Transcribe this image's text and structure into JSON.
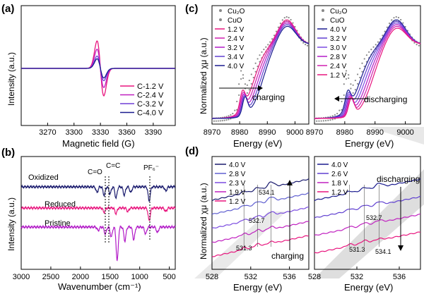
{
  "figure": {
    "panel_labels": [
      "(a)",
      "(b)",
      "(c)",
      "(d)"
    ]
  },
  "chart_data": [
    {
      "panel": "a",
      "type": "line",
      "xlabel": "Magnetic field (G)",
      "ylabel": "Intensity (a.u.)",
      "xlim": [
        3240,
        3415
      ],
      "ylim": [
        -1.0,
        1.0
      ],
      "xticks": [
        "3270",
        "3300",
        "3330",
        "3360",
        "3390"
      ],
      "legend": [
        "C-1.2 V",
        "C-2.4 V",
        "C-3.2 V",
        "C-4.0 V"
      ],
      "series": [
        {
          "name": "C-1.2 V",
          "color": "#e8157e",
          "center": 3330,
          "amplitude": 1.0,
          "width": 4
        },
        {
          "name": "C-2.4 V",
          "color": "#c020c0",
          "center": 3330,
          "amplitude": 0.7,
          "width": 4
        },
        {
          "name": "C-3.2 V",
          "color": "#6f3fd6",
          "center": 3330,
          "amplitude": 0.45,
          "width": 4
        },
        {
          "name": "C-4.0 V",
          "color": "#1a1b8f",
          "center": 3330,
          "amplitude": 0.35,
          "width": 4
        }
      ]
    },
    {
      "panel": "b",
      "type": "line",
      "xlabel": "Wavenumber (cm⁻¹)",
      "ylabel": "Intensity (a.u.)",
      "xlim": [
        3000,
        400
      ],
      "xticks": [
        "3000",
        "2500",
        "2000",
        "1500",
        "1000",
        "500"
      ],
      "annotations": [
        "C=O",
        "C=C",
        "PF₆⁻"
      ],
      "series": [
        {
          "name": "Oxidized",
          "color": "#1a1b6e"
        },
        {
          "name": "Reduced",
          "color": "#e8157e"
        },
        {
          "name": "Pristine",
          "color": "#b21bc7"
        }
      ]
    },
    {
      "panel": "c-left",
      "type": "line",
      "xlabel": "Energy (eV)",
      "ylabel": "Normalized χμ (a.u.)",
      "xlim": [
        8970,
        9005
      ],
      "xticks": [
        "8970",
        "8980",
        "8990",
        "9000"
      ],
      "legend": [
        "Cu₂O",
        "CuO",
        "1.2 V",
        "2.4 V",
        "3.2 V",
        "3.4 V",
        "4.0 V"
      ],
      "annotation": "charging"
    },
    {
      "panel": "c-right",
      "type": "line",
      "xlabel": "Energy (eV)",
      "xlim": [
        8970,
        9005
      ],
      "xticks": [
        "8970",
        "8980",
        "8990",
        "9000"
      ],
      "legend": [
        "Cu₂O",
        "CuO",
        "4.0 V",
        "3.2 V",
        "3.0 V",
        "2.8 V",
        "2.4 V",
        "1.2 V"
      ],
      "annotation": "discharging"
    },
    {
      "panel": "d-left",
      "type": "line",
      "xlabel": "Energy (eV)",
      "ylabel": "Normalized χμ (a.u.)",
      "xlim": [
        528,
        538
      ],
      "xticks": [
        "528",
        "532",
        "536"
      ],
      "legend": [
        "4.0 V",
        "2.8 V",
        "2.3 V",
        "1.9 V",
        "1.2 V"
      ],
      "peak_labels": [
        "534.1",
        "532.7",
        "531.3"
      ],
      "annotation": "charging"
    },
    {
      "panel": "d-right",
      "type": "line",
      "xlabel": "Energy (eV)",
      "xlim": [
        528,
        538
      ],
      "xticks": [
        "528",
        "532",
        "536"
      ],
      "legend": [
        "4.0 V",
        "2.6 V",
        "1.8 V",
        "1.2 V"
      ],
      "peak_labels": [
        "532.7",
        "531.3",
        "534.1"
      ],
      "annotation": "discharging"
    }
  ]
}
